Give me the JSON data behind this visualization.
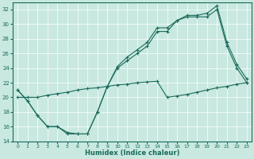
{
  "line1_x": [
    0,
    1,
    2,
    3,
    4,
    5,
    6,
    7,
    8,
    9,
    10,
    11,
    12,
    13,
    14,
    15,
    16,
    17,
    18,
    19,
    20,
    21,
    22,
    23
  ],
  "line1_y": [
    21,
    19.5,
    17.5,
    16,
    16,
    15,
    15,
    15,
    18,
    21.5,
    24,
    25,
    26,
    27,
    29,
    29,
    30.5,
    31,
    31,
    31,
    32,
    27,
    24,
    22
  ],
  "line2_x": [
    0,
    1,
    2,
    3,
    4,
    5,
    6,
    7,
    8,
    9,
    10,
    11,
    12,
    13,
    14,
    15,
    16,
    17,
    18,
    19,
    20,
    21,
    22,
    23
  ],
  "line2_y": [
    20,
    20,
    20,
    20.3,
    20.5,
    20.7,
    21,
    21.2,
    21.3,
    21.5,
    21.7,
    21.8,
    22,
    22.1,
    22.2,
    20,
    20.2,
    20.4,
    20.7,
    21,
    21.3,
    21.5,
    21.8,
    22
  ],
  "line3_x": [
    0,
    1,
    2,
    3,
    4,
    5,
    6,
    7,
    8,
    9,
    10,
    11,
    12,
    13,
    14,
    15,
    16,
    17,
    18,
    19,
    20,
    21,
    22,
    23
  ],
  "line3_y": [
    21,
    19.5,
    17.5,
    16,
    16,
    15.2,
    15,
    15,
    18,
    21.5,
    24.2,
    25.5,
    26.5,
    27.5,
    29.5,
    29.5,
    30.5,
    31.2,
    31.2,
    31.5,
    32.5,
    27.5,
    24.5,
    22.5
  ],
  "color": "#1a6b5a",
  "bg_color": "#c8e8e0",
  "grid_color": "#ffffff",
  "xlabel": "Humidex (Indice chaleur)",
  "ylim": [
    14,
    33
  ],
  "xlim": [
    -0.5,
    23.5
  ],
  "yticks": [
    14,
    16,
    18,
    20,
    22,
    24,
    26,
    28,
    30,
    32
  ],
  "xticks": [
    0,
    1,
    2,
    3,
    4,
    5,
    6,
    7,
    8,
    9,
    10,
    11,
    12,
    13,
    14,
    15,
    16,
    17,
    18,
    19,
    20,
    21,
    22,
    23
  ],
  "xticklabels": [
    "0",
    "1",
    "2",
    "3",
    "4",
    "5",
    "6",
    "7",
    "8",
    "9",
    "10",
    "11",
    "12",
    "13",
    "14",
    "15",
    "16",
    "17",
    "18",
    "19",
    "20",
    "21",
    "22",
    "23"
  ]
}
